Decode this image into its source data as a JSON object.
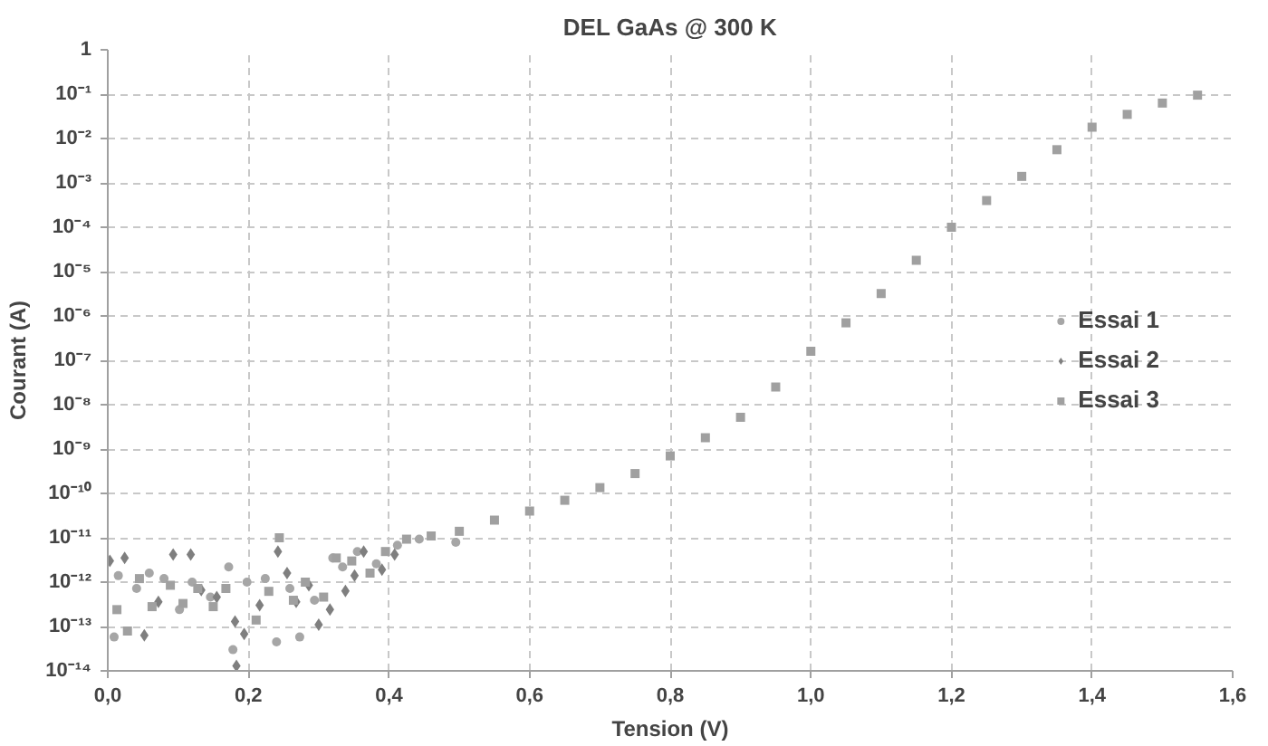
{
  "chart_data": {
    "type": "scatter",
    "title": "DEL GaAs @ 300 K",
    "xlabel": "Tension (V)",
    "ylabel": "Courant (A)",
    "log": "y",
    "grid": true,
    "legend": "right",
    "xlim": [
      0,
      1.6
    ],
    "ylim": [
      1e-14,
      1
    ],
    "xticks": [
      {
        "value": 0,
        "label": "0,0"
      },
      {
        "value": 0.2,
        "label": "0,2"
      },
      {
        "value": 0.4,
        "label": "0,4"
      },
      {
        "value": 0.6,
        "label": "0,6"
      },
      {
        "value": 0.8,
        "label": "0,8"
      },
      {
        "value": 1.0,
        "label": "1,0"
      },
      {
        "value": 1.2,
        "label": "1,2"
      },
      {
        "value": 1.4,
        "label": "1,4"
      },
      {
        "value": 1.6,
        "label": "1,6"
      }
    ],
    "yticks": [
      {
        "value": 1e-14,
        "label": "10⁻¹⁴"
      },
      {
        "value": 1e-13,
        "label": "10⁻¹³"
      },
      {
        "value": 1e-12,
        "label": "10⁻¹²"
      },
      {
        "value": 1e-11,
        "label": "10⁻¹¹"
      },
      {
        "value": 1e-10,
        "label": "10⁻¹⁰"
      },
      {
        "value": 1e-09,
        "label": "10⁻⁹"
      },
      {
        "value": 1e-08,
        "label": "10⁻⁸"
      },
      {
        "value": 1e-07,
        "label": "10⁻⁷"
      },
      {
        "value": 1e-06,
        "label": "10⁻⁶"
      },
      {
        "value": 1e-05,
        "label": "10⁻⁵"
      },
      {
        "value": 0.0001,
        "label": "10⁻⁴"
      },
      {
        "value": 0.001,
        "label": "10⁻³"
      },
      {
        "value": 0.01,
        "label": "10⁻²"
      },
      {
        "value": 0.1,
        "label": "10⁻¹"
      },
      1
    ],
    "series": [
      {
        "name": "Essai 1",
        "color": "#a6a6a6",
        "marker": "circle",
        "x": [
          0.009,
          0.015,
          0.041,
          0.059,
          0.08,
          0.102,
          0.12,
          0.146,
          0.172,
          0.178,
          0.198,
          0.224,
          0.24,
          0.259,
          0.273,
          0.294,
          0.32,
          0.334,
          0.355,
          0.382,
          0.412,
          0.443,
          0.495
        ],
        "values": [
          5.8e-14,
          1.4e-12,
          7.2e-13,
          1.6e-12,
          1.2e-12,
          2.4e-13,
          1e-12,
          4.6e-13,
          2.2e-12,
          3e-14,
          1e-12,
          1.2e-12,
          4.5e-14,
          7.2e-13,
          5.8e-14,
          3.9e-13,
          3.5e-12,
          2.2e-12,
          4.9e-12,
          2.6e-12,
          6.8e-12,
          9.3e-12,
          7.9e-12
        ]
      },
      {
        "name": "Essai 2",
        "color": "#7f7f7f",
        "marker": "diamond",
        "x": [
          0.003,
          0.024,
          0.052,
          0.072,
          0.093,
          0.118,
          0.133,
          0.155,
          0.181,
          0.183,
          0.194,
          0.216,
          0.242,
          0.255,
          0.268,
          0.286,
          0.3,
          0.316,
          0.338,
          0.351,
          0.364,
          0.39,
          0.408
        ],
        "values": [
          3e-12,
          3.5e-12,
          6.3e-14,
          3.6e-13,
          4.2e-12,
          4.2e-12,
          6.6e-13,
          4.6e-13,
          1.3e-13,
          1.3e-14,
          6.8e-14,
          3e-13,
          4.9e-12,
          1.6e-12,
          3.6e-13,
          8.5e-13,
          1.1e-13,
          2.4e-13,
          6.3e-13,
          1.4e-12,
          4.9e-12,
          1.9e-12,
          4.2e-12
        ]
      },
      {
        "name": "Essai 3",
        "color": "#a0a0a0",
        "marker": "square",
        "x": [
          0.013,
          0.028,
          0.045,
          0.063,
          0.089,
          0.107,
          0.128,
          0.15,
          0.168,
          0.211,
          0.229,
          0.244,
          0.264,
          0.281,
          0.307,
          0.325,
          0.347,
          0.373,
          0.395,
          0.425,
          0.46,
          0.5,
          0.55,
          0.6,
          0.65,
          0.7,
          0.75,
          0.8,
          0.85,
          0.9,
          0.95,
          1.0,
          1.05,
          1.1,
          1.15,
          1.2,
          1.25,
          1.3,
          1.35,
          1.4,
          1.45,
          1.5,
          1.55
        ],
        "values": [
          2.4e-13,
          7.9e-14,
          1.2e-12,
          2.8e-13,
          8.5e-13,
          3.3e-13,
          7.2e-13,
          2.8e-13,
          7.2e-13,
          1.4e-13,
          6.2e-13,
          1e-11,
          3.9e-13,
          1e-12,
          4.6e-13,
          3.5e-12,
          3e-12,
          1.6e-12,
          4.9e-12,
          9.3e-12,
          1.1e-11,
          1.4e-11,
          2.5e-11,
          4e-11,
          7e-11,
          1.35e-10,
          2.8e-10,
          7e-10,
          1.8e-09,
          5.2e-09,
          2.5e-08,
          1.6e-07,
          7e-07,
          3.2e-06,
          1.8e-05,
          0.0001,
          0.0004,
          0.0014,
          0.0056,
          0.018,
          0.035,
          0.063,
          0.095
        ]
      }
    ]
  }
}
